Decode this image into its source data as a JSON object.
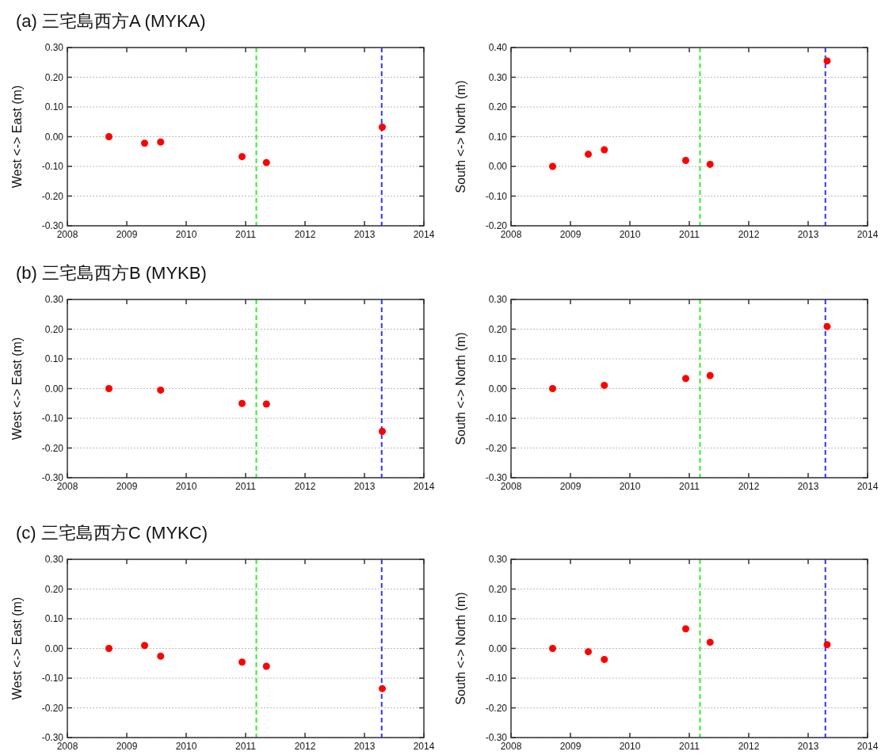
{
  "chart_data": [
    {
      "type": "scatter",
      "title": "(a) 三宅島西方A (MYKA)",
      "ylabel": "West <-> East (m)",
      "x": [
        2008.7,
        2009.3,
        2009.57,
        2010.94,
        2011.35,
        2013.3
      ],
      "series": [
        {
          "color": "#ff0000",
          "values": [
            0,
            -0.022,
            -0.018,
            -0.067,
            -0.087,
            0.032
          ]
        }
      ],
      "marker": "circle",
      "grid": "y",
      "xlim": [
        2008,
        2014
      ],
      "xticks": [
        2008,
        2009,
        2010,
        2011,
        2012,
        2013,
        2014
      ],
      "ylim": [
        -0.3,
        0.3
      ],
      "yticks": [
        {
          "value": -0.3,
          "label": "-0.30"
        },
        {
          "value": -0.2,
          "label": "-0.20"
        },
        {
          "value": -0.1,
          "label": "-0.10"
        },
        {
          "value": 0,
          "label": "0.00"
        },
        {
          "value": 0.1,
          "label": "0.10"
        },
        {
          "value": 0.2,
          "label": "0.20"
        },
        {
          "value": 0.3,
          "label": "0.30"
        }
      ],
      "ref_lines": [
        {
          "axis": "x",
          "value": 2011.18,
          "color": "#33ee33",
          "line_style": "dashed"
        },
        {
          "axis": "x",
          "value": 2013.29,
          "color": "#3333ff",
          "line_style": "dashed"
        }
      ]
    },
    {
      "type": "scatter",
      "ylabel": "South <-> North (m)",
      "x": [
        2008.7,
        2009.3,
        2009.57,
        2010.94,
        2011.35,
        2013.32
      ],
      "series": [
        {
          "color": "#ff0000",
          "values": [
            0,
            0.041,
            0.056,
            0.02,
            0.007,
            0.355
          ]
        }
      ],
      "marker": "circle",
      "grid": "y",
      "xlim": [
        2008,
        2014
      ],
      "xticks": [
        2008,
        2009,
        2010,
        2011,
        2012,
        2013,
        2014
      ],
      "ylim": [
        -0.2,
        0.4
      ],
      "yticks": [
        {
          "value": -0.2,
          "label": "-0.20"
        },
        {
          "value": -0.1,
          "label": "-0.10"
        },
        {
          "value": 0,
          "label": "0.00"
        },
        {
          "value": 0.1,
          "label": "0.10"
        },
        {
          "value": 0.2,
          "label": "0.20"
        },
        {
          "value": 0.3,
          "label": "0.30"
        },
        {
          "value": 0.4,
          "label": "0.40"
        }
      ],
      "ref_lines": [
        {
          "axis": "x",
          "value": 2011.18,
          "color": "#33ee33",
          "line_style": "dashed"
        },
        {
          "axis": "x",
          "value": 2013.29,
          "color": "#3333ff",
          "line_style": "dashed"
        }
      ]
    },
    {
      "type": "scatter",
      "title": "(b) 三宅島西方B (MYKB)",
      "ylabel": "West <-> East (m)",
      "x": [
        2008.7,
        2009.57,
        2010.94,
        2011.35,
        2013.3
      ],
      "series": [
        {
          "color": "#ff0000",
          "values": [
            0,
            -0.005,
            -0.05,
            -0.052,
            -0.144
          ]
        }
      ],
      "marker": "circle",
      "grid": "y",
      "xlim": [
        2008,
        2014
      ],
      "xticks": [
        2008,
        2009,
        2010,
        2011,
        2012,
        2013,
        2014
      ],
      "ylim": [
        -0.3,
        0.3
      ],
      "yticks": [
        {
          "value": -0.3,
          "label": "-0.30"
        },
        {
          "value": -0.2,
          "label": "-0.20"
        },
        {
          "value": -0.1,
          "label": "-0.10"
        },
        {
          "value": 0,
          "label": "0.00"
        },
        {
          "value": 0.1,
          "label": "0.10"
        },
        {
          "value": 0.2,
          "label": "0.20"
        },
        {
          "value": 0.3,
          "label": "0.30"
        }
      ],
      "ref_lines": [
        {
          "axis": "x",
          "value": 2011.18,
          "color": "#33ee33",
          "line_style": "dashed"
        },
        {
          "axis": "x",
          "value": 2013.29,
          "color": "#3333ff",
          "line_style": "dashed"
        }
      ]
    },
    {
      "type": "scatter",
      "ylabel": "South <-> North (m)",
      "x": [
        2008.7,
        2009.57,
        2010.94,
        2011.35,
        2013.32
      ],
      "series": [
        {
          "color": "#ff0000",
          "values": [
            0,
            0.011,
            0.034,
            0.044,
            0.209
          ]
        }
      ],
      "marker": "circle",
      "grid": "y",
      "xlim": [
        2008,
        2014
      ],
      "xticks": [
        2008,
        2009,
        2010,
        2011,
        2012,
        2013,
        2014
      ],
      "ylim": [
        -0.3,
        0.3
      ],
      "yticks": [
        {
          "value": -0.3,
          "label": "-0.30"
        },
        {
          "value": -0.2,
          "label": "-0.20"
        },
        {
          "value": -0.1,
          "label": "-0.10"
        },
        {
          "value": 0,
          "label": "0.00"
        },
        {
          "value": 0.1,
          "label": "0.10"
        },
        {
          "value": 0.2,
          "label": "0.20"
        },
        {
          "value": 0.3,
          "label": "0.30"
        }
      ],
      "ref_lines": [
        {
          "axis": "x",
          "value": 2011.18,
          "color": "#33ee33",
          "line_style": "dashed"
        },
        {
          "axis": "x",
          "value": 2013.29,
          "color": "#3333ff",
          "line_style": "dashed"
        }
      ]
    },
    {
      "type": "scatter",
      "title": "(c) 三宅島西方C (MYKC)",
      "ylabel": "West <-> East (m)",
      "x": [
        2008.7,
        2009.3,
        2009.57,
        2010.94,
        2011.35,
        2013.3
      ],
      "series": [
        {
          "color": "#ff0000",
          "values": [
            0,
            0.01,
            -0.026,
            -0.046,
            -0.06,
            -0.135
          ]
        }
      ],
      "marker": "circle",
      "grid": "y",
      "xlim": [
        2008,
        2014
      ],
      "xticks": [
        2008,
        2009,
        2010,
        2011,
        2012,
        2013,
        2014
      ],
      "ylim": [
        -0.3,
        0.3
      ],
      "yticks": [
        {
          "value": -0.3,
          "label": "-0.30"
        },
        {
          "value": -0.2,
          "label": "-0.20"
        },
        {
          "value": -0.1,
          "label": "-0.10"
        },
        {
          "value": 0,
          "label": "0.00"
        },
        {
          "value": 0.1,
          "label": "0.10"
        },
        {
          "value": 0.2,
          "label": "0.20"
        },
        {
          "value": 0.3,
          "label": "0.30"
        }
      ],
      "ref_lines": [
        {
          "axis": "x",
          "value": 2011.18,
          "color": "#33ee33",
          "line_style": "dashed"
        },
        {
          "axis": "x",
          "value": 2013.29,
          "color": "#3333ff",
          "line_style": "dashed"
        }
      ]
    },
    {
      "type": "scatter",
      "ylabel": "South <-> North (m)",
      "x": [
        2008.7,
        2009.3,
        2009.57,
        2010.94,
        2011.35,
        2013.32
      ],
      "series": [
        {
          "color": "#ff0000",
          "values": [
            0,
            -0.011,
            -0.037,
            0.066,
            0.021,
            0.013
          ]
        }
      ],
      "marker": "circle",
      "grid": "y",
      "xlim": [
        2008,
        2014
      ],
      "xticks": [
        2008,
        2009,
        2010,
        2011,
        2012,
        2013,
        2014
      ],
      "ylim": [
        -0.3,
        0.3
      ],
      "yticks": [
        {
          "value": -0.3,
          "label": "-0.30"
        },
        {
          "value": -0.2,
          "label": "-0.20"
        },
        {
          "value": -0.1,
          "label": "-0.10"
        },
        {
          "value": 0,
          "label": "0.00"
        },
        {
          "value": 0.1,
          "label": "0.10"
        },
        {
          "value": 0.2,
          "label": "0.20"
        },
        {
          "value": 0.3,
          "label": "0.30"
        }
      ],
      "ref_lines": [
        {
          "axis": "x",
          "value": 2011.18,
          "color": "#33ee33",
          "line_style": "dashed"
        },
        {
          "axis": "x",
          "value": 2013.29,
          "color": "#3333ff",
          "line_style": "dashed"
        }
      ]
    }
  ]
}
